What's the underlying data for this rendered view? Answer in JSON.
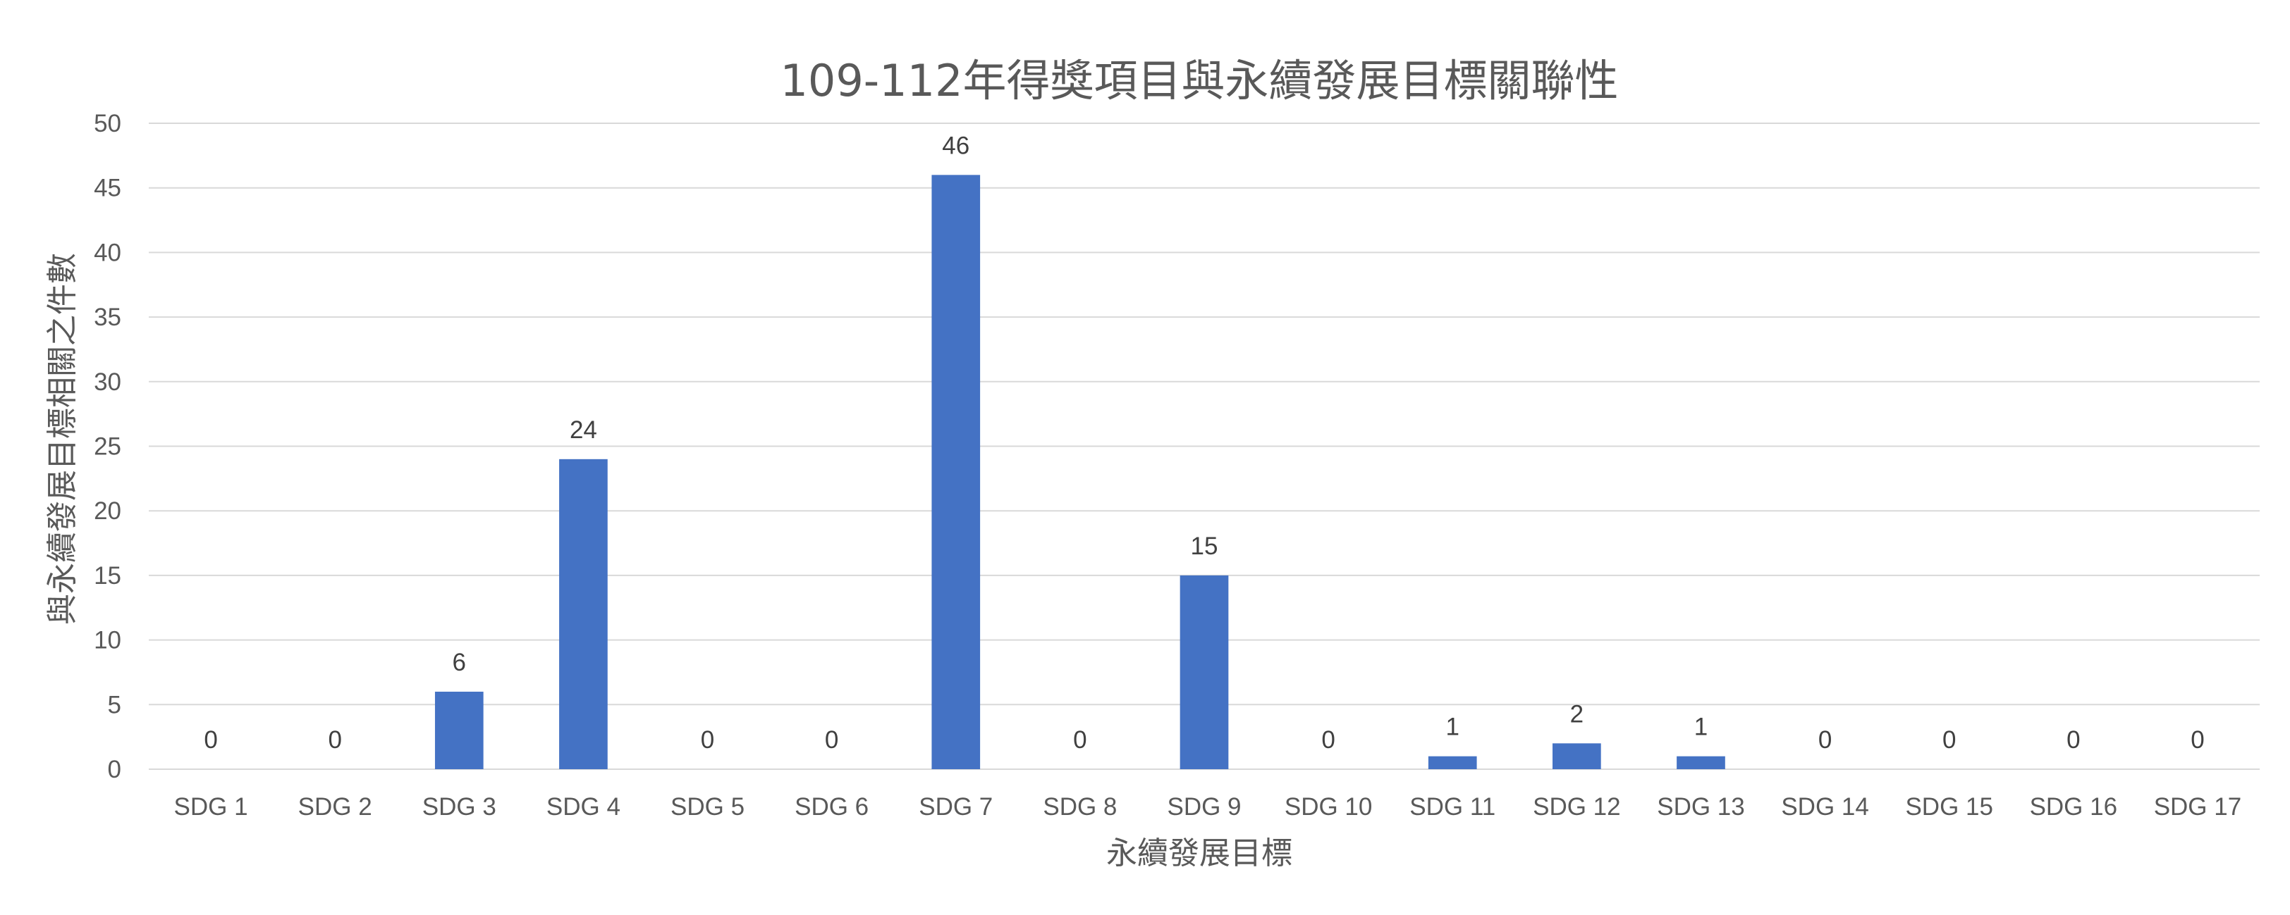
{
  "chart_data": {
    "type": "bar",
    "title": "109-112年得獎項目與永續發展目標關聯性",
    "xlabel": "永續發展目標",
    "ylabel": "與永續發展目標相關之件數",
    "categories": [
      "SDG 1",
      "SDG 2",
      "SDG 3",
      "SDG 4",
      "SDG 5",
      "SDG 6",
      "SDG 7",
      "SDG 8",
      "SDG 9",
      "SDG 10",
      "SDG 11",
      "SDG 12",
      "SDG 13",
      "SDG 14",
      "SDG 15",
      "SDG 16",
      "SDG 17"
    ],
    "values": [
      0,
      0,
      6,
      24,
      0,
      0,
      46,
      0,
      15,
      0,
      1,
      2,
      1,
      0,
      0,
      0,
      0
    ],
    "data_labels": [
      "0",
      "0",
      "6",
      "24",
      "0",
      "0",
      "46",
      "0",
      "15",
      "0",
      "1",
      "2",
      "1",
      "0",
      "0",
      "0",
      "0"
    ],
    "ylim": [
      0,
      50
    ],
    "yticks": [
      "0",
      "5",
      "10",
      "15",
      "20",
      "25",
      "30",
      "35",
      "40",
      "45",
      "50"
    ],
    "grid": true,
    "legend": "none",
    "bar_color": "#4472C4",
    "grid_color": "#D9D9D9"
  }
}
